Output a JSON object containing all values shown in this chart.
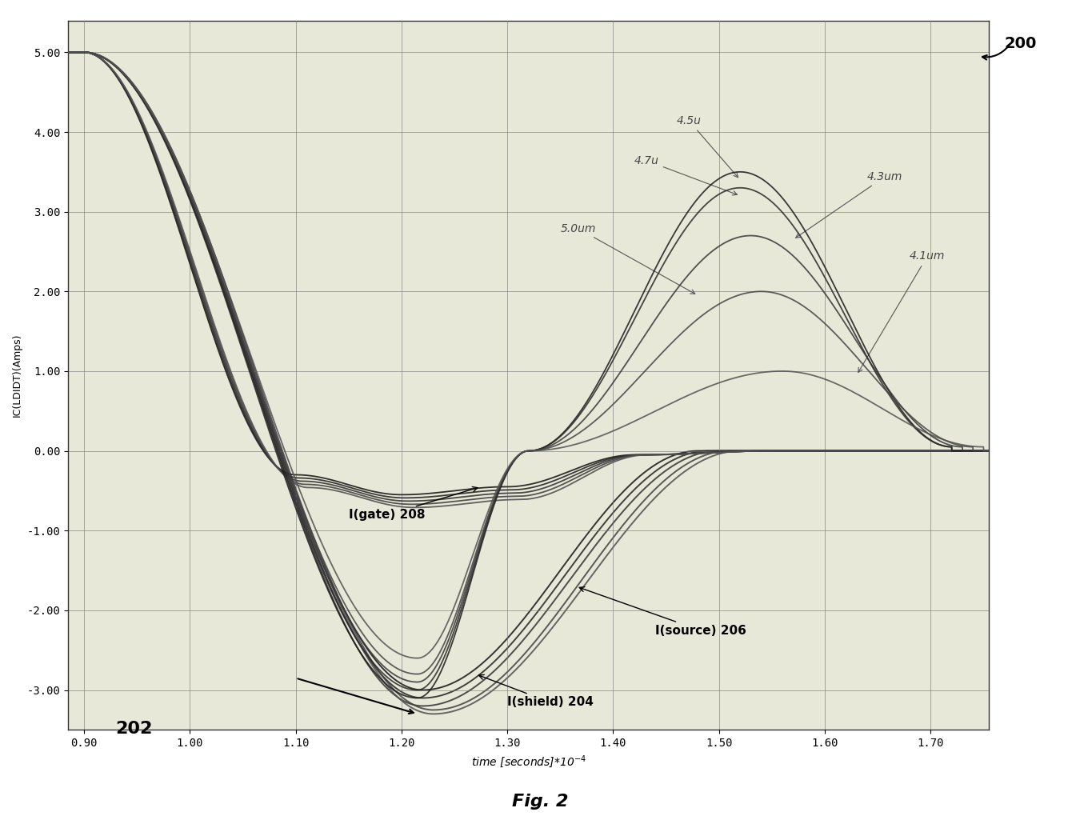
{
  "xlabel": "time [seconds]*10",
  "ylabel": "IC(LDIDT)(Amps)",
  "xlim": [
    0.9,
    1.75
  ],
  "ylim": [
    -3.5,
    5.3
  ],
  "xticks": [
    0.9,
    1.0,
    1.1,
    1.2,
    1.3,
    1.4,
    1.5,
    1.6,
    1.7
  ],
  "yticks": [
    -3.0,
    -2.0,
    -1.0,
    0.0,
    1.0,
    2.0,
    3.0,
    4.0,
    5.0
  ],
  "xtick_labels": [
    "0.90",
    "1.00",
    "1.10",
    "1.20",
    "1.30",
    "1.40",
    "1.50",
    "1.60",
    "1.70"
  ],
  "ytick_labels": [
    "-3.00",
    "-2.00",
    "-1.00",
    "0.00",
    "1.00",
    "2.00",
    "3.00",
    "4.00",
    "5.00"
  ],
  "background_color": "#ffffff",
  "plot_bg_color": "#e8e8d8",
  "grid_color": "#888888",
  "fig2_label": "Fig. 2",
  "label_200": "200",
  "label_202": "202",
  "label_204": "I(shield) 204",
  "label_206": "I(source) 206",
  "label_208": "I(gate) 208",
  "param_labels": [
    "4.5u",
    "4.7u",
    "4.3um",
    "4.1um",
    "5.0um"
  ],
  "gate_color": "#2a2a2a",
  "shield_colors": [
    "#2a2a2a",
    "#353535",
    "#404040",
    "#505050",
    "#606060"
  ],
  "source_colors": [
    "#2a2a2a",
    "#353535",
    "#404040",
    "#505050",
    "#606060"
  ]
}
